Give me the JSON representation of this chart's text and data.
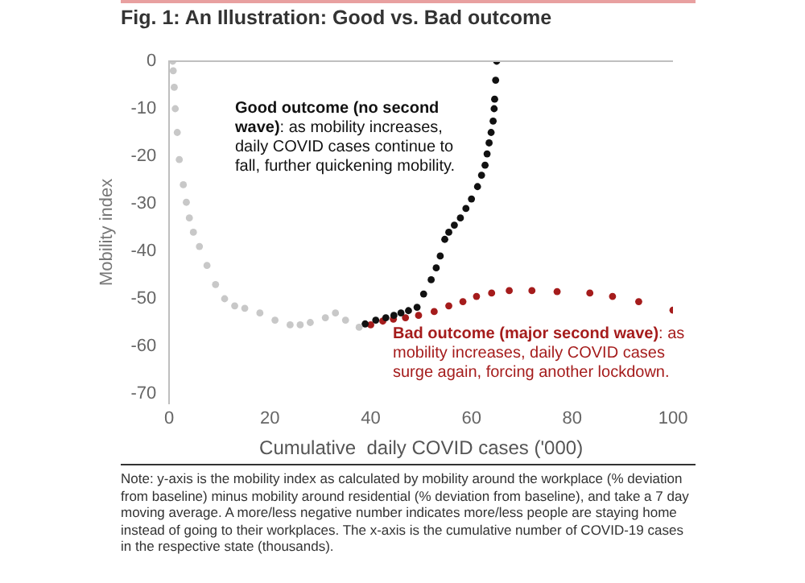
{
  "chart_data": {
    "type": "scatter",
    "title": "Fig. 1: An Illustration: Good vs. Bad outcome",
    "xlabel": "Cumulative  daily COVID cases ('000)",
    "ylabel": "Mobility index",
    "xlim": [
      0,
      100
    ],
    "xticks": [
      0,
      20,
      40,
      60,
      80,
      100
    ],
    "ylim": [
      -72,
      0
    ],
    "yticks": [
      0,
      -10,
      -20,
      -30,
      -40,
      -50,
      -60,
      -70
    ],
    "grid": false,
    "legend": false,
    "marker": "circle",
    "ref_lines": [
      {
        "axis": "y",
        "value": 0,
        "color": "#bfbfbf"
      }
    ],
    "series": [
      {
        "color": "#c8c8c8",
        "x": [
          0.7,
          0.8,
          1,
          1.2,
          1.6,
          2,
          2.8,
          3.4,
          4,
          4.8,
          6,
          7.5,
          9.2,
          11,
          13,
          15,
          18,
          21,
          24,
          26,
          28,
          31,
          33,
          35,
          37.7
        ],
        "values": [
          0,
          -2,
          -5.5,
          -10,
          -15,
          -20.7,
          -26,
          -29.7,
          -33,
          -36,
          -39,
          -43,
          -47,
          -50,
          -51.5,
          -52,
          -53,
          -54.5,
          -55.5,
          -55.5,
          -55,
          -54,
          -53,
          -54.5,
          -56
        ]
      },
      {
        "color": "#111111",
        "x": [
          38.9,
          41,
          43,
          44.6,
          46,
          47.5,
          49.2,
          50.5,
          52,
          53,
          53.8,
          54.7,
          55.5,
          56.6,
          57.8,
          58.9,
          60,
          61.2,
          62,
          62.7,
          63.1,
          63.5,
          63.9,
          64.3,
          64.5,
          64.6,
          64.8,
          65
        ],
        "values": [
          -55.3,
          -54.5,
          -54,
          -53.5,
          -53,
          -52.5,
          -51.8,
          -49,
          -46,
          -43.5,
          -41,
          -37.5,
          -36,
          -34.5,
          -33,
          -31,
          -29,
          -26.4,
          -24,
          -21.9,
          -19.5,
          -17.2,
          -15,
          -12.6,
          -10,
          -8,
          -4,
          0
        ]
      },
      {
        "color": "#a51c1c",
        "x": [
          40,
          42.4,
          44.5,
          46.9,
          49.5,
          52.6,
          55.5,
          58.3,
          61,
          64,
          67.5,
          72,
          77,
          83.5,
          88,
          93.2,
          100
        ],
        "values": [
          -55.5,
          -54.7,
          -54.3,
          -54,
          -53.5,
          -52.7,
          -51.5,
          -50.6,
          -49.5,
          -48.8,
          -48.3,
          -48.3,
          -48.5,
          -48.8,
          -49.5,
          -50.6,
          -52.4
        ]
      }
    ],
    "annotations": [
      "Good outcome (no second wave): as mobility increases, daily COVID cases continue to fall, further quickening mobility.",
      "Bad outcome (major second wave): as mobility increases, daily COVID cases surge again, forcing another lockdown.",
      "Note: y-axis is the mobility index as calculated by mobility around the workplace (% deviation from baseline) minus mobility around residential (% deviation from baseline), and take a 7 day moving average. A more/less negative number indicates more/less people are staying home instead of going to their workplaces. The x-axis is the cumulative number of COVID-19 cases in the respective state (thousands)."
    ]
  }
}
